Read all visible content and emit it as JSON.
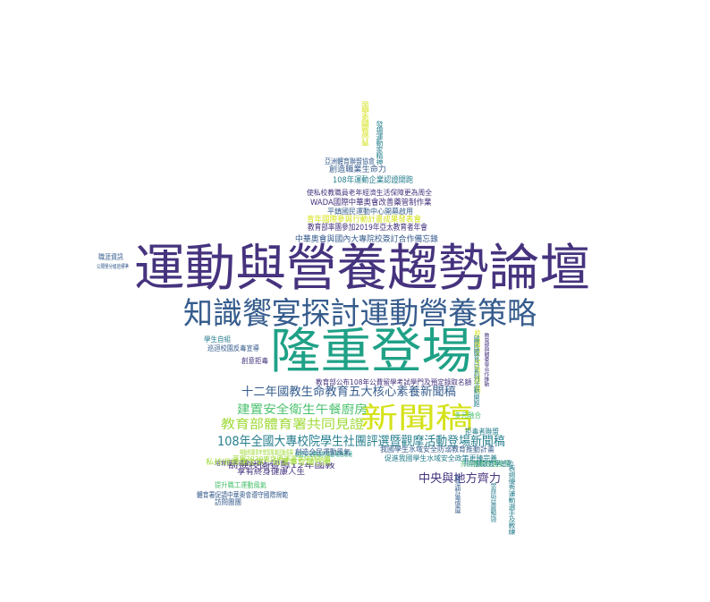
{
  "palette": {
    "purple": "#46337e",
    "indigo": "#365c8d",
    "teal": "#277f8e",
    "green": "#1fa187",
    "lime": "#4ac16d",
    "yellow": "#a0da39",
    "bright": "#d5e21a"
  },
  "words": [
    {
      "text": "運動與營養趨勢論壇",
      "color": "purple"
    },
    {
      "text": "知識饗宴探討運動營養策略",
      "color": "indigo"
    },
    {
      "text": "隆重登場",
      "color": "green"
    },
    {
      "text": "新聞稿",
      "color": "bright"
    },
    {
      "text": "十二年國教生命教育五大核心素養新聞稿",
      "color": "indigo"
    },
    {
      "text": "建置安全衛生午餐廚房",
      "color": "lime"
    },
    {
      "text": "教育部體育署共同見證",
      "color": "yellow"
    },
    {
      "text": "108年全國大專校院學生社團評選暨觀摩活動登場新聞稿",
      "color": "teal"
    },
    {
      "text": "中央與地方齊力",
      "color": "purple"
    },
    {
      "text": "中華奧會與國內大專院校簽訂合作備忘錄",
      "color": "indigo"
    },
    {
      "text": "教育部率團參加2019年亞太教育者年會",
      "color": "purple"
    },
    {
      "text": "青年國際參與行動計畫成果發表會",
      "color": "bright"
    },
    {
      "text": "平鎮國民運動中心開幕啟用",
      "color": "indigo"
    },
    {
      "text": "WADA國際中華奧會改善藥管制作業",
      "color": "purple"
    },
    {
      "text": "使私校教職員老年經濟生活保障更為周全",
      "color": "purple"
    },
    {
      "text": "108年運動企業認證開跑",
      "color": "teal"
    },
    {
      "text": "創造職業生命力",
      "color": "indigo"
    },
    {
      "text": "亞洲體育聯盟協會",
      "color": "indigo"
    },
    {
      "text": "教育部公布108年公費留學考試學門及預定錄取名額",
      "color": "purple"
    },
    {
      "text": "學生自組",
      "color": "teal"
    },
    {
      "text": "巡迴校園反毒宣導",
      "color": "indigo"
    },
    {
      "text": "創意拒毒",
      "color": "purple"
    },
    {
      "text": "職涯資訊",
      "color": "indigo"
    },
    {
      "text": "公開學分組班標準",
      "color": "indigo"
    },
    {
      "text": "多元融合",
      "color": "lime"
    },
    {
      "text": "拒毒者聯盟",
      "color": "teal"
    },
    {
      "text": "共同推動校園安全",
      "color": "lime"
    },
    {
      "text": "我國學生水域安全防溺教育推動計畫",
      "color": "indigo"
    },
    {
      "text": "促進我國學生水域安全政策更臻完善",
      "color": "teal"
    },
    {
      "text": "共同擴散教學感動",
      "color": "teal"
    },
    {
      "text": "帶動校園青年學習風潮活動成果",
      "color": "yellow"
    },
    {
      "text": "創造安全無虞的運動場館環境",
      "color": "green"
    },
    {
      "text": "落實2020東京奧運選手培訓計畫",
      "color": "yellow"
    },
    {
      "text": "前進校園宣導12年國教",
      "color": "purple"
    },
    {
      "text": "創造全民運動風氣",
      "color": "indigo"
    },
    {
      "text": "培育優秀運動科學人才計畫",
      "color": "purple"
    },
    {
      "text": "私校退撫儲金第一屆董事會議召開",
      "color": "yellow"
    },
    {
      "text": "享有終身健康人生",
      "color": "purple"
    },
    {
      "text": "提升職工運動風氣",
      "color": "lime"
    },
    {
      "text": "體育署促請中華奧會遵守國際規範",
      "color": "indigo"
    },
    {
      "text": "訪問團團",
      "color": "indigo"
    },
    {
      "text": "高中職學生參與國際教育旅行計畫",
      "color": "bright"
    },
    {
      "text": "發揚運動家精神",
      "color": "teal"
    },
    {
      "text": "表揚優秀運動選手及教練",
      "color": "teal"
    },
    {
      "text": "校園安全防護網",
      "color": "bright"
    },
    {
      "text": "國民體育日系列活動開跑",
      "color": "teal"
    },
    {
      "text": "教育部與體委會合作推動",
      "color": "purple"
    },
    {
      "text": "高教深耕計畫成果展",
      "color": "indigo"
    },
    {
      "text": "學習扶助計畫推動成效",
      "color": "teal"
    }
  ]
}
